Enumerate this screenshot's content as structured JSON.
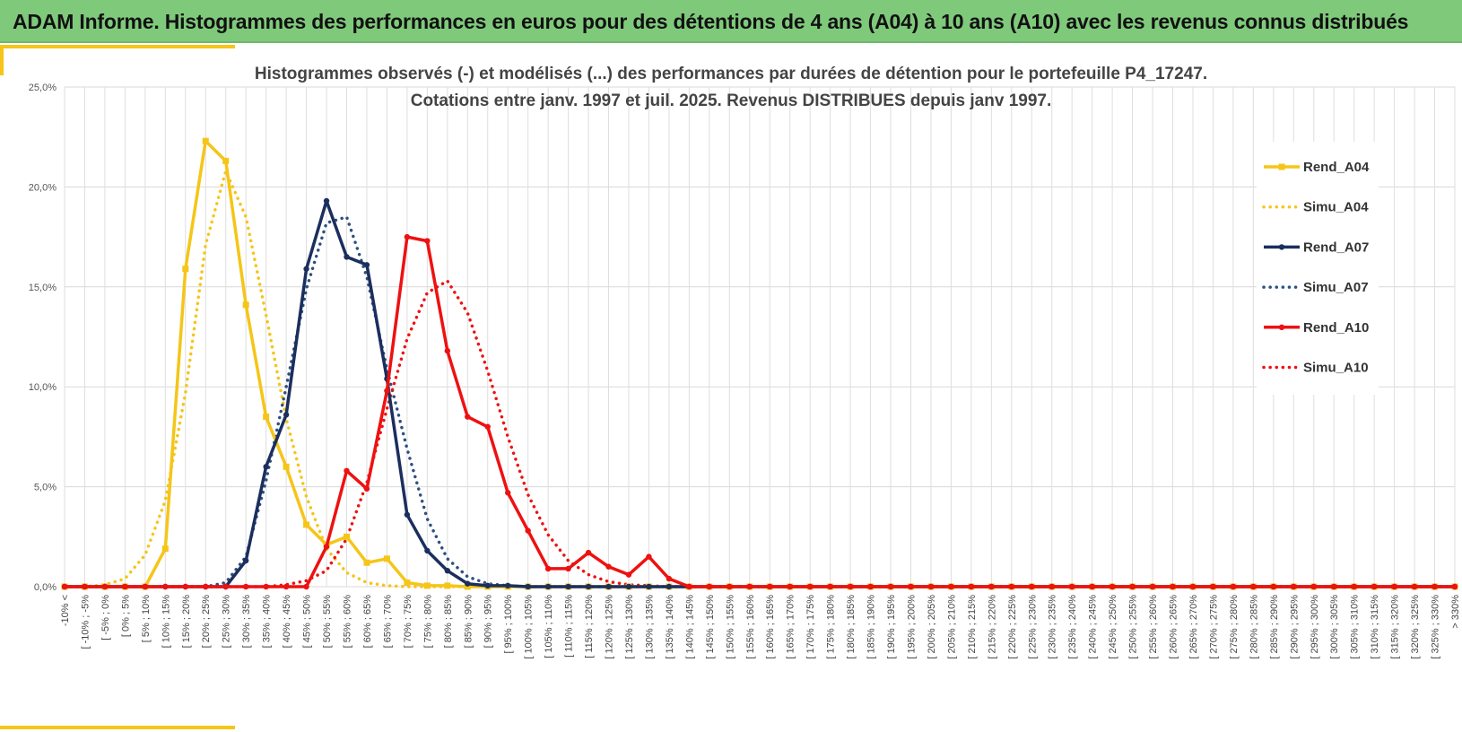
{
  "banner": {
    "title": "ADAM Informe. Histogrammes des performances en euros pour des détentions de 4 ans (A04) à 10 ans (A10) avec les revenus connus distribués",
    "color": "#7fc97b"
  },
  "accent_color": "#f5c518",
  "chart_data": {
    "type": "line",
    "title": "Histogrammes observés (-) et modélisés (...) des performances par durées de détention pour le portefeuille P4_17247.",
    "subtitle": "Cotations entre janv. 1997 et juil. 2025. Revenus DISTRIBUES depuis janv 1997.",
    "xlabel": "",
    "ylabel": "",
    "ylim": [
      0,
      25
    ],
    "yticks": [
      "0,0%",
      "5,0%",
      "10,0%",
      "15,0%",
      "20,0%",
      "25,0%"
    ],
    "grid": true,
    "legend_position": "right",
    "categories": [
      "-10% <",
      "[ -10% ; -5%",
      "[ -5% ; 0%",
      "[ 0% ; 5%",
      "[ 5% ; 10%",
      "[ 10% ; 15%",
      "[ 15% ; 20%",
      "[ 20% ; 25%",
      "[ 25% ; 30%",
      "[ 30% ; 35%",
      "[ 35% ; 40%",
      "[ 40% ; 45%",
      "[ 45% ; 50%",
      "[ 50% ; 55%",
      "[ 55% ; 60%",
      "[ 60% ; 65%",
      "[ 65% ; 70%",
      "[ 70% ; 75%",
      "[ 75% ; 80%",
      "[ 80% ; 85%",
      "[ 85% ; 90%",
      "[ 90% ; 95%",
      "[ 95% ; 100%",
      "[ 100% ; 105%",
      "[ 105% ; 110%",
      "[ 110% ; 115%",
      "[ 115% ; 120%",
      "[ 120% ; 125%",
      "[ 125% ; 130%",
      "[ 130% ; 135%",
      "[ 135% ; 140%",
      "[ 140% ; 145%",
      "[ 145% ; 150%",
      "[ 150% ; 155%",
      "[ 155% ; 160%",
      "[ 160% ; 165%",
      "[ 165% ; 170%",
      "[ 170% ; 175%",
      "[ 175% ; 180%",
      "[ 180% ; 185%",
      "[ 185% ; 190%",
      "[ 190% ; 195%",
      "[ 195% ; 200%",
      "[ 200% ; 205%",
      "[ 205% ; 210%",
      "[ 210% ; 215%",
      "[ 215% ; 220%",
      "[ 220% ; 225%",
      "[ 225% ; 230%",
      "[ 230% ; 235%",
      "[ 235% ; 240%",
      "[ 240% ; 245%",
      "[ 245% ; 250%",
      "[ 250% ; 255%",
      "[ 255% ; 260%",
      "[ 260% ; 265%",
      "[ 265% ; 270%",
      "[ 270% ; 275%",
      "[ 275% ; 280%",
      "[ 280% ; 285%",
      "[ 285% ; 290%",
      "[ 290% ; 295%",
      "[ 295% ; 300%",
      "[ 300% ; 305%",
      "[ 305% ; 310%",
      "[ 310% ; 315%",
      "[ 315% ; 320%",
      "[ 320% ; 325%",
      "[ 325% ; 330%",
      "> 330%"
    ],
    "series": [
      {
        "name": "Rend_A04",
        "color": "#f5c518",
        "style": "solid",
        "markers": "square",
        "values": [
          0,
          0,
          0,
          0,
          0,
          1.9,
          15.9,
          22.3,
          21.3,
          14.1,
          8.5,
          6.0,
          3.1,
          2.1,
          2.5,
          1.2,
          1.4,
          0.2,
          0.05,
          0.05,
          0,
          0,
          0,
          0,
          0,
          0,
          0,
          0,
          0,
          0,
          0,
          0,
          0,
          0,
          0,
          0,
          0,
          0,
          0,
          0,
          0,
          0,
          0,
          0,
          0,
          0,
          0,
          0,
          0,
          0,
          0,
          0,
          0,
          0,
          0,
          0,
          0,
          0,
          0,
          0,
          0,
          0,
          0,
          0,
          0,
          0,
          0,
          0,
          0,
          0
        ]
      },
      {
        "name": "Simu_A04",
        "color": "#f5c518",
        "style": "dotted",
        "markers": "none",
        "values": [
          0,
          0,
          0.1,
          0.4,
          1.6,
          4.3,
          9.7,
          17.1,
          20.8,
          18.5,
          13.6,
          8.4,
          4.5,
          1.9,
          0.7,
          0.2,
          0.05,
          0,
          0,
          0,
          0,
          0,
          0,
          0,
          0,
          0,
          0,
          0,
          0,
          0,
          0,
          0,
          0,
          0,
          0,
          0,
          0,
          0,
          0,
          0,
          0,
          0,
          0,
          0,
          0,
          0,
          0,
          0,
          0,
          0,
          0,
          0,
          0,
          0,
          0,
          0,
          0,
          0,
          0,
          0,
          0,
          0,
          0,
          0,
          0,
          0,
          0,
          0,
          0,
          0
        ]
      },
      {
        "name": "Rend_A07",
        "color": "#1b2f5e",
        "style": "solid",
        "markers": "circle",
        "values": [
          0,
          0,
          0,
          0,
          0,
          0,
          0,
          0,
          0,
          1.3,
          6.0,
          8.6,
          15.9,
          19.3,
          16.5,
          16.1,
          10.4,
          3.6,
          1.8,
          0.8,
          0.15,
          0.05,
          0.05,
          0,
          0,
          0,
          0,
          0,
          0,
          0,
          0,
          0,
          0,
          0,
          0,
          0,
          0,
          0,
          0,
          0,
          0,
          0,
          0,
          0,
          0,
          0,
          0,
          0,
          0,
          0,
          0,
          0,
          0,
          0,
          0,
          0,
          0,
          0,
          0,
          0,
          0,
          0,
          0,
          0,
          0,
          0,
          0,
          0,
          0,
          0
        ]
      },
      {
        "name": "Simu_A07",
        "color": "#2f4f7f",
        "style": "dotted",
        "markers": "none",
        "values": [
          0,
          0,
          0,
          0,
          0,
          0,
          0,
          0,
          0.2,
          1.5,
          5.3,
          10.0,
          14.9,
          18.2,
          18.5,
          15.5,
          10.9,
          6.9,
          3.4,
          1.4,
          0.5,
          0.15,
          0.05,
          0,
          0,
          0,
          0,
          0,
          0,
          0,
          0,
          0,
          0,
          0,
          0,
          0,
          0,
          0,
          0,
          0,
          0,
          0,
          0,
          0,
          0,
          0,
          0,
          0,
          0,
          0,
          0,
          0,
          0,
          0,
          0,
          0,
          0,
          0,
          0,
          0,
          0,
          0,
          0,
          0,
          0,
          0,
          0,
          0,
          0,
          0
        ]
      },
      {
        "name": "Rend_A10",
        "color": "#ee1111",
        "style": "solid",
        "markers": "circle",
        "values": [
          0,
          0,
          0,
          0,
          0,
          0,
          0,
          0,
          0,
          0,
          0,
          0,
          0,
          2.0,
          5.8,
          4.9,
          9.8,
          17.5,
          17.3,
          11.8,
          8.5,
          8.0,
          4.7,
          2.8,
          0.9,
          0.9,
          1.7,
          1.0,
          0.6,
          1.5,
          0.4,
          0,
          0,
          0,
          0,
          0,
          0,
          0,
          0,
          0,
          0,
          0,
          0,
          0,
          0,
          0,
          0,
          0,
          0,
          0,
          0,
          0,
          0,
          0,
          0,
          0,
          0,
          0,
          0,
          0,
          0,
          0,
          0,
          0,
          0,
          0,
          0,
          0,
          0,
          0
        ]
      },
      {
        "name": "Simu_A10",
        "color": "#ee1111",
        "style": "dotted",
        "markers": "none",
        "values": [
          0,
          0,
          0,
          0,
          0,
          0,
          0,
          0,
          0,
          0,
          0,
          0.1,
          0.3,
          0.8,
          2.4,
          5.2,
          8.9,
          12.4,
          14.7,
          15.3,
          13.7,
          10.8,
          7.5,
          4.6,
          2.6,
          1.3,
          0.6,
          0.25,
          0.1,
          0.05,
          0,
          0,
          0,
          0,
          0,
          0,
          0,
          0,
          0,
          0,
          0,
          0,
          0,
          0,
          0,
          0,
          0,
          0,
          0,
          0,
          0,
          0,
          0,
          0,
          0,
          0,
          0,
          0,
          0,
          0,
          0,
          0,
          0,
          0,
          0,
          0,
          0,
          0,
          0,
          0
        ]
      }
    ]
  }
}
